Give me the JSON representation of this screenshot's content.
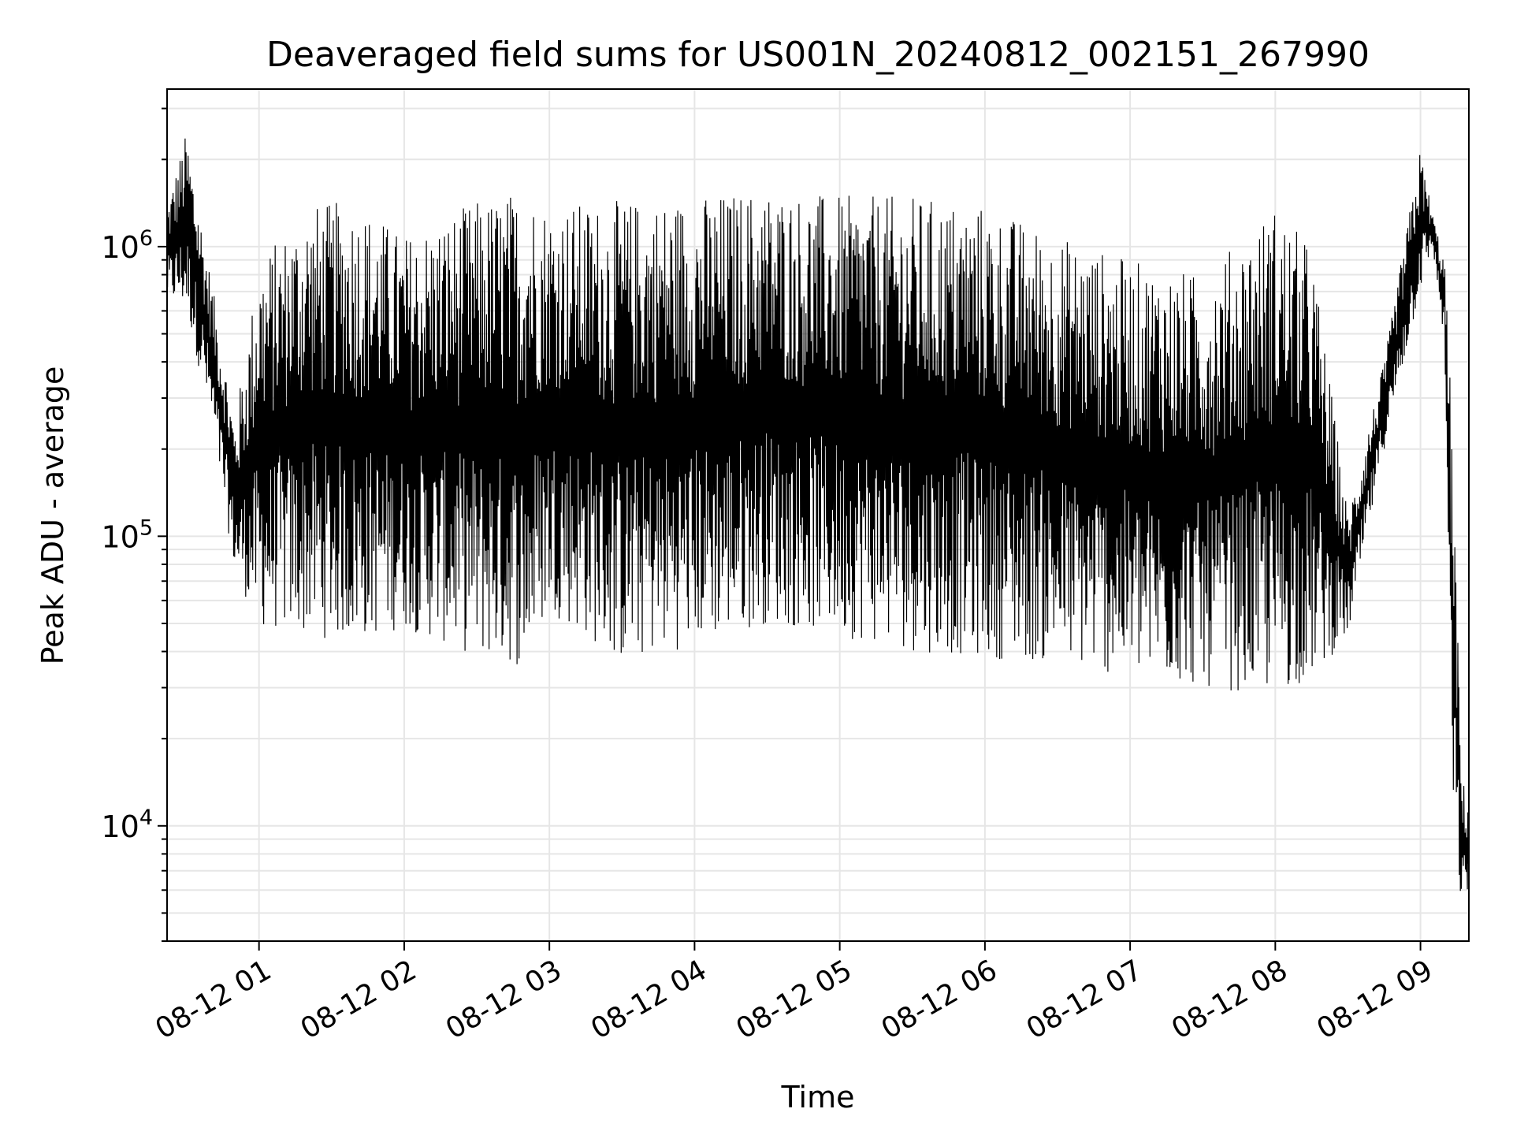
{
  "chart_data": {
    "type": "line",
    "title": "Deaveraged field sums for US001N_20240812_002151_267990",
    "xlabel": "Time",
    "ylabel": "Peak ADU - average",
    "x_range": [
      "2024-08-12 00:22",
      "2024-08-12 09:20"
    ],
    "ylim": [
      4000,
      3500000
    ],
    "y_scale": "log",
    "grid": true,
    "legend": "none",
    "line_color": "#000000",
    "x_ticks": [
      "08-12 01",
      "08-12 02",
      "08-12 03",
      "08-12 04",
      "08-12 05",
      "08-12 06",
      "08-12 07",
      "08-12 08",
      "08-12 09"
    ],
    "x_tick_hours": [
      1,
      2,
      3,
      4,
      5,
      6,
      7,
      8,
      9
    ],
    "y_ticks": [
      {
        "value": 10000,
        "base": "10",
        "exp": "4"
      },
      {
        "value": 100000,
        "base": "10",
        "exp": "5"
      },
      {
        "value": 1000000,
        "base": "10",
        "exp": "6"
      }
    ],
    "series": [
      {
        "values_note_free": true,
        "envelope": [
          {
            "t": "00:22",
            "high": 1400000,
            "low": 650000
          },
          {
            "t": "00:30",
            "high": 2500000,
            "low": 600000
          },
          {
            "t": "00:40",
            "high": 800000,
            "low": 250000
          },
          {
            "t": "00:50",
            "high": 250000,
            "low": 75000
          },
          {
            "t": "01:00",
            "high": 900000,
            "low": 48000
          },
          {
            "t": "01:20",
            "high": 1400000,
            "low": 45000
          },
          {
            "t": "01:40",
            "high": 1450000,
            "low": 43000
          },
          {
            "t": "02:00",
            "high": 1100000,
            "low": 48000
          },
          {
            "t": "02:30",
            "high": 1450000,
            "low": 38000
          },
          {
            "t": "02:50",
            "high": 1600000,
            "low": 35000
          },
          {
            "t": "03:00",
            "high": 1400000,
            "low": 55000
          },
          {
            "t": "03:30",
            "high": 1450000,
            "low": 36000
          },
          {
            "t": "04:00",
            "high": 1500000,
            "low": 42000
          },
          {
            "t": "04:30",
            "high": 1600000,
            "low": 50000
          },
          {
            "t": "05:00",
            "high": 1500000,
            "low": 45000
          },
          {
            "t": "05:30",
            "high": 1500000,
            "low": 40000
          },
          {
            "t": "06:00",
            "high": 1400000,
            "low": 38000
          },
          {
            "t": "06:30",
            "high": 1100000,
            "low": 36000
          },
          {
            "t": "07:00",
            "high": 900000,
            "low": 32000
          },
          {
            "t": "07:30",
            "high": 800000,
            "low": 30000
          },
          {
            "t": "08:00",
            "high": 1400000,
            "low": 28000
          },
          {
            "t": "08:15",
            "high": 1000000,
            "low": 32000
          },
          {
            "t": "08:30",
            "high": 120000,
            "low": 45000
          },
          {
            "t": "08:45",
            "high": 400000,
            "low": 200000
          },
          {
            "t": "09:00",
            "high": 2200000,
            "low": 700000
          },
          {
            "t": "09:05",
            "high": 1300000,
            "low": 1000000
          },
          {
            "t": "09:10",
            "high": 900000,
            "low": 450000
          },
          {
            "t": "09:13",
            "high": 250000,
            "low": 12000
          },
          {
            "t": "09:17",
            "high": 15000,
            "low": 5000
          },
          {
            "t": "09:20",
            "high": 12000,
            "low": 6000
          }
        ]
      }
    ]
  }
}
